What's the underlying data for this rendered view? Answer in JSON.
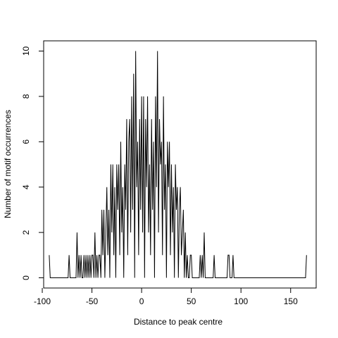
{
  "chart_data": {
    "type": "line",
    "xlabel": "Distance to peak centre",
    "ylabel": "Number of motif occurrences",
    "color": "#000000",
    "xlim": [
      -98.6,
      175.7
    ],
    "ylim": [
      -0.45,
      10.45
    ],
    "xticks": [
      -100,
      -50,
      0,
      50,
      100,
      150
    ],
    "yticks": [
      0,
      2,
      4,
      6,
      8,
      10
    ],
    "x": [
      -93,
      -92,
      -91,
      -90,
      -89,
      -88,
      -87,
      -86,
      -85,
      -84,
      -83,
      -82,
      -81,
      -80,
      -79,
      -78,
      -77,
      -76,
      -75,
      -74,
      -73,
      -72,
      -71,
      -70,
      -69,
      -68,
      -67,
      -66,
      -65,
      -64,
      -63,
      -62,
      -61,
      -60,
      -59,
      -58,
      -57,
      -56,
      -55,
      -54,
      -53,
      -52,
      -51,
      -50,
      -49,
      -48,
      -47,
      -46,
      -45,
      -44,
      -43,
      -42,
      -41,
      -40,
      -39,
      -38,
      -37,
      -36,
      -35,
      -34,
      -33,
      -32,
      -31,
      -30,
      -29,
      -28,
      -27,
      -26,
      -25,
      -24,
      -23,
      -22,
      -21,
      -20,
      -19,
      -18,
      -17,
      -16,
      -15,
      -14,
      -13,
      -12,
      -11,
      -10,
      -9,
      -8,
      -7,
      -6,
      -5,
      -4,
      -3,
      -2,
      -1,
      0,
      1,
      2,
      3,
      4,
      5,
      6,
      7,
      8,
      9,
      10,
      11,
      12,
      13,
      14,
      15,
      16,
      17,
      18,
      19,
      20,
      21,
      22,
      23,
      24,
      25,
      26,
      27,
      28,
      29,
      30,
      31,
      32,
      33,
      34,
      35,
      36,
      37,
      38,
      39,
      40,
      41,
      42,
      43,
      44,
      45,
      46,
      47,
      48,
      49,
      50,
      51,
      52,
      53,
      54,
      55,
      56,
      57,
      58,
      59,
      60,
      61,
      62,
      63,
      64,
      65,
      66,
      67,
      68,
      69,
      70,
      71,
      72,
      73,
      74,
      75,
      76,
      77,
      78,
      79,
      80,
      81,
      82,
      83,
      84,
      85,
      86,
      87,
      88,
      89,
      90,
      91,
      92,
      93,
      94,
      95,
      96,
      97,
      98,
      99,
      100,
      101,
      102,
      103,
      104,
      105,
      106,
      107,
      108,
      109,
      110,
      111,
      112,
      113,
      114,
      115,
      116,
      117,
      118,
      119,
      120,
      121,
      122,
      123,
      124,
      125,
      126,
      127,
      128,
      129,
      130,
      131,
      132,
      133,
      134,
      135,
      136,
      137,
      138,
      139,
      140,
      141,
      142,
      143,
      144,
      145,
      146,
      147,
      148,
      149,
      150,
      151,
      152,
      153,
      154,
      155,
      156,
      157,
      158,
      159,
      160,
      161,
      162,
      163,
      164,
      165,
      166
    ],
    "values": [
      1,
      0,
      0,
      0,
      0,
      0,
      0,
      0,
      0,
      0,
      0,
      0,
      0,
      0,
      0,
      0,
      0,
      0,
      0,
      0,
      1,
      0,
      0,
      0,
      0,
      0,
      0,
      0,
      2,
      0,
      1,
      0,
      1,
      0,
      0,
      1,
      0,
      1,
      0,
      1,
      0,
      1,
      0,
      1,
      1,
      0,
      2,
      0,
      1,
      0,
      1,
      1,
      0,
      3,
      1,
      3,
      0,
      2,
      4,
      1,
      3,
      0,
      5,
      2,
      5,
      1,
      4,
      0,
      5,
      3,
      5,
      1,
      6,
      2,
      4,
      0,
      5,
      3,
      7,
      1,
      6,
      7,
      2,
      8,
      3,
      9,
      0,
      10,
      4,
      6,
      1,
      7,
      3,
      8,
      2,
      8,
      0,
      7,
      4,
      8,
      2,
      5,
      1,
      7,
      3,
      6,
      0,
      8,
      4,
      10,
      2,
      7,
      5,
      6,
      1,
      8,
      3,
      5,
      0,
      6,
      4,
      6,
      1,
      5,
      2,
      4,
      0,
      5,
      3,
      4,
      0,
      3,
      4,
      1,
      2,
      3,
      0,
      2,
      0,
      1,
      0,
      0,
      1,
      1,
      0,
      0,
      0,
      0,
      0,
      0,
      0,
      0,
      1,
      0,
      1,
      0,
      2,
      0,
      0,
      0,
      0,
      0,
      0,
      0,
      0,
      0,
      1,
      0,
      0,
      0,
      0,
      0,
      0,
      0,
      0,
      0,
      0,
      0,
      0,
      0,
      1,
      1,
      0,
      0,
      0,
      1,
      0,
      0,
      0,
      0,
      0,
      0,
      0,
      0,
      0,
      0,
      0,
      0,
      0,
      0,
      0,
      0,
      0,
      0,
      0,
      0,
      0,
      0,
      0,
      0,
      0,
      0,
      0,
      0,
      0,
      0,
      0,
      0,
      0,
      0,
      0,
      0,
      0,
      0,
      0,
      0,
      0,
      0,
      0,
      0,
      0,
      0,
      0,
      0,
      0,
      0,
      0,
      0,
      0,
      0,
      0,
      0,
      0,
      0,
      0,
      0,
      0,
      0,
      0,
      0,
      0,
      0,
      0,
      0,
      0,
      0,
      0,
      0,
      0,
      1
    ]
  }
}
